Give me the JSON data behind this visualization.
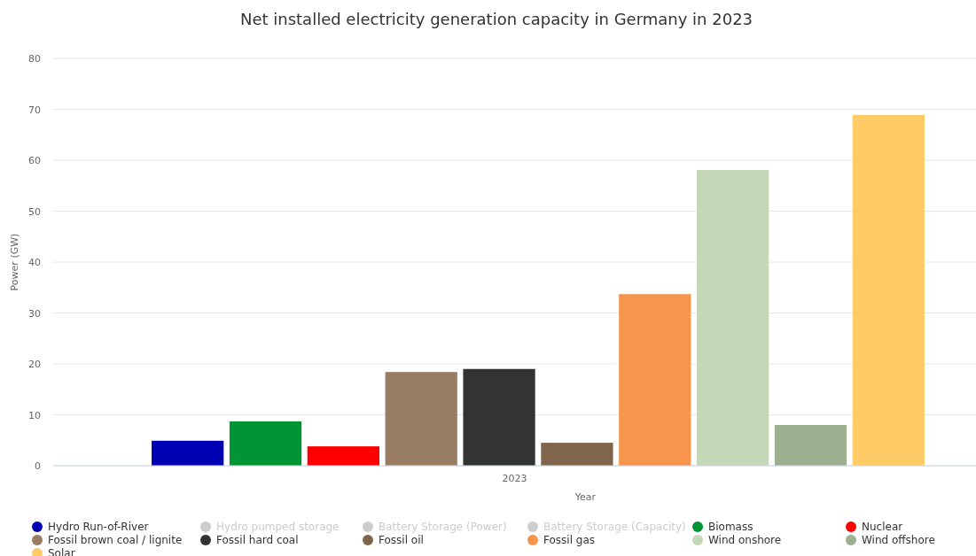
{
  "chart_data": {
    "type": "bar",
    "title": "Net installed electricity generation capacity in Germany in 2023",
    "xlabel": "Year",
    "ylabel": "Power (GW)",
    "categories": [
      "2023"
    ],
    "series": [
      {
        "name": "Hydro Run-of-River",
        "color": "#0000b3",
        "values": [
          4.9
        ]
      },
      {
        "name": "Hydro pumped storage",
        "color": "#cccccc",
        "values": [
          null
        ]
      },
      {
        "name": "Battery Storage (Power)",
        "color": "#cccccc",
        "values": [
          null
        ]
      },
      {
        "name": "Battery Storage (Capacity)",
        "color": "#cccccc",
        "values": [
          null
        ]
      },
      {
        "name": "Biomass",
        "color": "#009534",
        "values": [
          8.7
        ]
      },
      {
        "name": "Nuclear",
        "color": "#ff0000",
        "values": [
          3.8
        ]
      },
      {
        "name": "Fossil brown coal / lignite",
        "color": "#997d63",
        "values": [
          18.4
        ]
      },
      {
        "name": "Fossil hard coal",
        "color": "#333333",
        "values": [
          19.0
        ]
      },
      {
        "name": "Fossil oil",
        "color": "#80644b",
        "values": [
          4.5
        ]
      },
      {
        "name": "Fossil gas",
        "color": "#f8954c",
        "values": [
          33.7
        ]
      },
      {
        "name": "Wind onshore",
        "color": "#c4d8b7",
        "values": [
          58.1
        ]
      },
      {
        "name": "Wind offshore",
        "color": "#9caf8f",
        "values": [
          8.0
        ]
      },
      {
        "name": "Solar",
        "color": "#ffcb66",
        "values": [
          68.9
        ]
      }
    ],
    "ylim": [
      0,
      80
    ],
    "yticks": [
      0,
      10,
      20,
      30,
      40,
      50,
      60,
      70,
      80
    ],
    "grid": "y",
    "legend": "bottom"
  }
}
